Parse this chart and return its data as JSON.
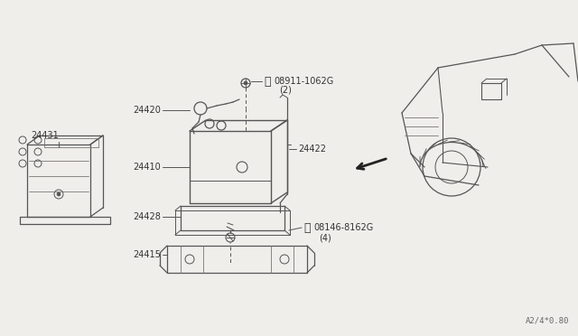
{
  "bg_color": "#f0eeeb",
  "line_color": "#555555",
  "diagram_code": "A2/4*0.80"
}
